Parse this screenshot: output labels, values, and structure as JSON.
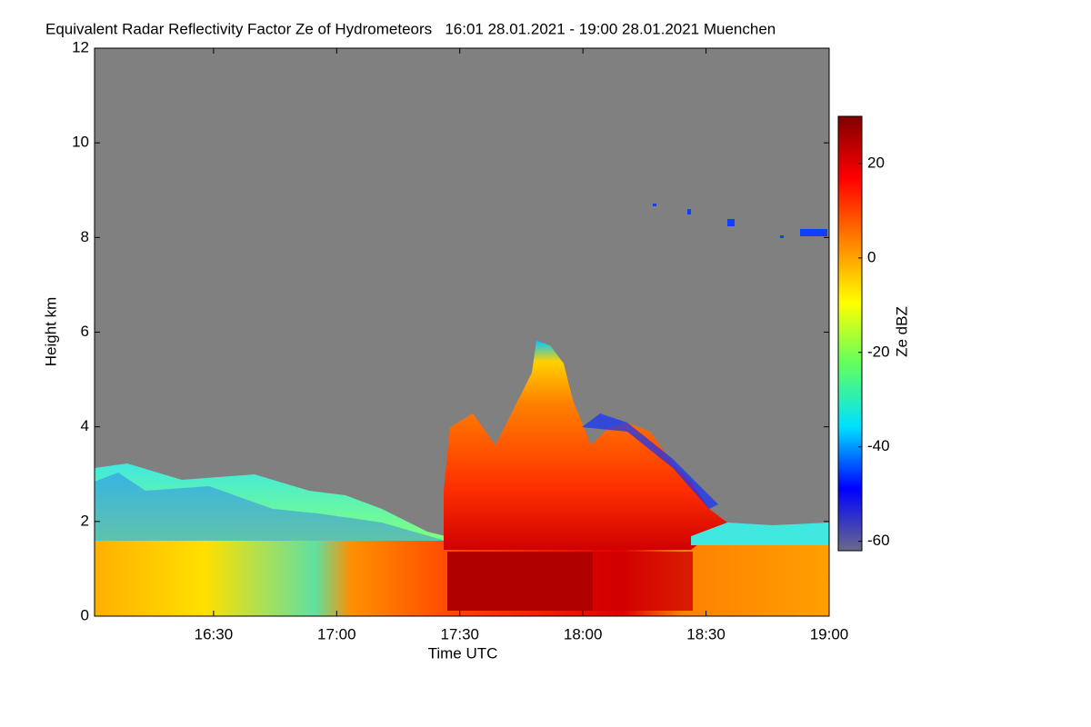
{
  "chart_data": {
    "type": "heatmap",
    "title": "Equivalent Radar Reflectivity Factor Ze of Hydrometeors   16:01 28.01.2021 - 19:00 28.01.2021 Muenchen",
    "x_label": "Time UTC",
    "y_label": "Height km",
    "xlim": [
      16.0167,
      19
    ],
    "xticks": [
      {
        "value": 16.5,
        "label": "16:30"
      },
      {
        "value": 17,
        "label": "17:00"
      },
      {
        "value": 17.5,
        "label": "17:30"
      },
      {
        "value": 18,
        "label": "18:00"
      },
      {
        "value": 18.5,
        "label": "18:30"
      },
      {
        "value": 19,
        "label": "19:00"
      }
    ],
    "ylim": [
      0,
      12
    ],
    "yticks": [
      0,
      2,
      4,
      6,
      8,
      10,
      12
    ],
    "colorbar": {
      "label": "Ze dBZ",
      "lim": [
        -62,
        30
      ],
      "ticks": [
        -60,
        -40,
        -20,
        0,
        20
      ],
      "colormap": [
        "#6a6a8a",
        "#0000ff",
        "#00e0ff",
        "#60ff60",
        "#ffff00",
        "#ff8000",
        "#ff0000",
        "#800000"
      ]
    }
  }
}
